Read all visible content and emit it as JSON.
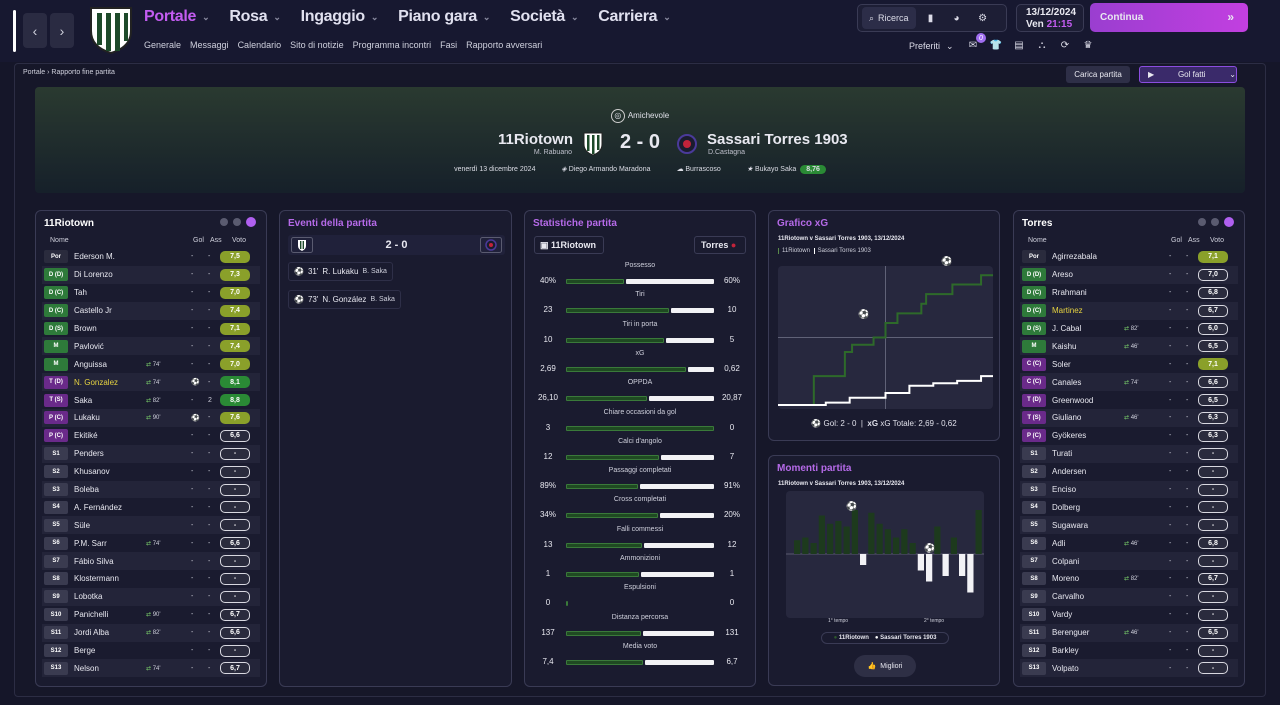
{
  "nav": {
    "main": [
      {
        "label": "Portale",
        "active": true
      },
      {
        "label": "Rosa"
      },
      {
        "label": "Ingaggio"
      },
      {
        "label": "Piano gara"
      },
      {
        "label": "Società"
      },
      {
        "label": "Carriera"
      }
    ],
    "sub": [
      "Generale",
      "Messaggi",
      "Calendario",
      "Sito di notizie",
      "Programma incontri",
      "Fasi",
      "Rapporto avversari"
    ],
    "search": "Ricerca",
    "date": "13/12/2024",
    "day": "Ven",
    "time": "21:15",
    "continue": "Continua",
    "favorites": "Preferiti",
    "badge": "0"
  },
  "breadcrumb": {
    "root": "Portale",
    "current": "Rapporto fine partita"
  },
  "actions": {
    "load": "Carica partita",
    "goals": "Gol fatti"
  },
  "match": {
    "competition": "Amichevole",
    "home": "11Riotown",
    "home_coach": "M. Rabuano",
    "away": "Sassari Torres 1903",
    "away_coach": "D.Castagna",
    "score": "2 - 0",
    "date": "venerdì 13 dicembre 2024",
    "stadium": "Diego Armando Maradona",
    "weather": "Burrascoso",
    "mvp": "Bukayo Saka",
    "mvp_rating": "8,76"
  },
  "home_lineup": {
    "title": "11Riotown",
    "headers": {
      "name": "Nome",
      "gol": "Gol",
      "ass": "Ass",
      "vote": "Voto"
    },
    "players": [
      {
        "pos": "Por",
        "pcolor": "#2a2b3d",
        "name": "Ederson M.",
        "sub": "",
        "gol": "-",
        "ass": "-",
        "vote": "7,5",
        "vcolor": "#8aa02a"
      },
      {
        "pos": "D (D)",
        "pcolor": "#2e7a3a",
        "name": "Di Lorenzo",
        "sub": "",
        "gol": "-",
        "ass": "-",
        "vote": "7,3",
        "vcolor": "#8aa02a"
      },
      {
        "pos": "D (C)",
        "pcolor": "#2e7a3a",
        "name": "Tah",
        "sub": "",
        "gol": "-",
        "ass": "-",
        "vote": "7,0",
        "vcolor": "#8aa02a"
      },
      {
        "pos": "D (C)",
        "pcolor": "#2e7a3a",
        "name": "Castello Jr",
        "sub": "",
        "gol": "-",
        "ass": "-",
        "vote": "7,4",
        "vcolor": "#8aa02a"
      },
      {
        "pos": "D (S)",
        "pcolor": "#2e7a3a",
        "name": "Brown",
        "sub": "",
        "gol": "-",
        "ass": "-",
        "vote": "7,1",
        "vcolor": "#8aa02a"
      },
      {
        "pos": "M",
        "pcolor": "#2e7a3a",
        "name": "Pavlović",
        "sub": "",
        "gol": "-",
        "ass": "-",
        "vote": "7,4",
        "vcolor": "#8aa02a"
      },
      {
        "pos": "M",
        "pcolor": "#2e7a3a",
        "name": "Anguissa",
        "sub": "74'",
        "gol": "-",
        "ass": "-",
        "vote": "7,0",
        "vcolor": "#8aa02a"
      },
      {
        "pos": "T (D)",
        "pcolor": "#6a2a8a",
        "name": "N. Gonzalez",
        "sub": "74'",
        "gol": "⚽",
        "ass": "-",
        "vote": "8,1",
        "vcolor": "#2a8a35",
        "hl": true
      },
      {
        "pos": "T (S)",
        "pcolor": "#6a2a8a",
        "name": "Saka",
        "sub": "82'",
        "gol": "-",
        "ass": "2",
        "vote": "8,8",
        "vcolor": "#2a8a35"
      },
      {
        "pos": "P (C)",
        "pcolor": "#6a2a8a",
        "name": "Lukaku",
        "sub": "90'",
        "gol": "⚽",
        "ass": "-",
        "vote": "7,6",
        "vcolor": "#8aa02a"
      },
      {
        "pos": "P (C)",
        "pcolor": "#6a2a8a",
        "name": "Ekitiké",
        "sub": "",
        "gol": "-",
        "ass": "-",
        "vote": "6,6",
        "vcolor": "#2a2b3d"
      },
      {
        "pos": "S1",
        "pcolor": "#3a3b50",
        "name": "Penders",
        "sub": "",
        "gol": "-",
        "ass": "-",
        "vote": "-",
        "vcolor": "#2a2b3d"
      },
      {
        "pos": "S2",
        "pcolor": "#3a3b50",
        "name": "Khusanov",
        "sub": "",
        "gol": "-",
        "ass": "-",
        "vote": "-",
        "vcolor": "#2a2b3d"
      },
      {
        "pos": "S3",
        "pcolor": "#3a3b50",
        "name": "Boleba",
        "sub": "",
        "gol": "-",
        "ass": "-",
        "vote": "-",
        "vcolor": "#2a2b3d"
      },
      {
        "pos": "S4",
        "pcolor": "#3a3b50",
        "name": "A. Fernández",
        "sub": "",
        "gol": "-",
        "ass": "-",
        "vote": "-",
        "vcolor": "#2a2b3d"
      },
      {
        "pos": "S5",
        "pcolor": "#3a3b50",
        "name": "Süle",
        "sub": "",
        "gol": "-",
        "ass": "-",
        "vote": "-",
        "vcolor": "#2a2b3d"
      },
      {
        "pos": "S6",
        "pcolor": "#3a3b50",
        "name": "P.M. Sarr",
        "sub": "74'",
        "gol": "-",
        "ass": "-",
        "vote": "6,6",
        "vcolor": "#2a2b3d"
      },
      {
        "pos": "S7",
        "pcolor": "#3a3b50",
        "name": "Fábio Silva",
        "sub": "",
        "gol": "-",
        "ass": "-",
        "vote": "-",
        "vcolor": "#2a2b3d"
      },
      {
        "pos": "S8",
        "pcolor": "#3a3b50",
        "name": "Klostermann",
        "sub": "",
        "gol": "-",
        "ass": "-",
        "vote": "-",
        "vcolor": "#2a2b3d"
      },
      {
        "pos": "S9",
        "pcolor": "#3a3b50",
        "name": "Lobotka",
        "sub": "",
        "gol": "-",
        "ass": "-",
        "vote": "-",
        "vcolor": "#2a2b3d"
      },
      {
        "pos": "S10",
        "pcolor": "#3a3b50",
        "name": "Panichelli",
        "sub": "90'",
        "gol": "-",
        "ass": "-",
        "vote": "6,7",
        "vcolor": "#2a2b3d"
      },
      {
        "pos": "S11",
        "pcolor": "#3a3b50",
        "name": "Jordi Alba",
        "sub": "82'",
        "gol": "-",
        "ass": "-",
        "vote": "6,6",
        "vcolor": "#2a2b3d"
      },
      {
        "pos": "S12",
        "pcolor": "#3a3b50",
        "name": "Berge",
        "sub": "",
        "gol": "-",
        "ass": "-",
        "vote": "-",
        "vcolor": "#2a2b3d"
      },
      {
        "pos": "S13",
        "pcolor": "#3a3b50",
        "name": "Nelson",
        "sub": "74'",
        "gol": "-",
        "ass": "-",
        "vote": "6,7",
        "vcolor": "#2a2b3d"
      }
    ]
  },
  "away_lineup": {
    "title": "Torres",
    "headers": {
      "name": "Nome",
      "gol": "Gol",
      "ass": "Ass",
      "vote": "Voto"
    },
    "players": [
      {
        "pos": "Por",
        "pcolor": "#2a2b3d",
        "name": "Agirrezabala",
        "sub": "",
        "gol": "-",
        "ass": "-",
        "vote": "7,1",
        "vcolor": "#8aa02a"
      },
      {
        "pos": "D (D)",
        "pcolor": "#2e7a3a",
        "name": "Areso",
        "sub": "",
        "gol": "-",
        "ass": "-",
        "vote": "7,0",
        "vcolor": "#2a2b3d"
      },
      {
        "pos": "D (C)",
        "pcolor": "#2e7a3a",
        "name": "Rrahmani",
        "sub": "",
        "gol": "-",
        "ass": "-",
        "vote": "6,8",
        "vcolor": "#2a2b3d"
      },
      {
        "pos": "D (C)",
        "pcolor": "#2e7a3a",
        "name": "Martinez",
        "sub": "",
        "gol": "-",
        "ass": "-",
        "vote": "6,7",
        "vcolor": "#2a2b3d",
        "hl": true
      },
      {
        "pos": "D (S)",
        "pcolor": "#2e7a3a",
        "name": "J. Cabal",
        "sub": "82'",
        "gol": "-",
        "ass": "-",
        "vote": "6,0",
        "vcolor": "#2a2b3d"
      },
      {
        "pos": "M",
        "pcolor": "#2e7a3a",
        "name": "Kaishu",
        "sub": "46'",
        "gol": "-",
        "ass": "-",
        "vote": "6,5",
        "vcolor": "#2a2b3d"
      },
      {
        "pos": "C (C)",
        "pcolor": "#6a2a8a",
        "name": "Soler",
        "sub": "",
        "gol": "-",
        "ass": "-",
        "vote": "7,1",
        "vcolor": "#8aa02a"
      },
      {
        "pos": "C (C)",
        "pcolor": "#6a2a8a",
        "name": "Canales",
        "sub": "74'",
        "gol": "-",
        "ass": "-",
        "vote": "6,6",
        "vcolor": "#2a2b3d"
      },
      {
        "pos": "T (D)",
        "pcolor": "#6a2a8a",
        "name": "Greenwood",
        "sub": "",
        "gol": "-",
        "ass": "-",
        "vote": "6,5",
        "vcolor": "#2a2b3d"
      },
      {
        "pos": "T (S)",
        "pcolor": "#6a2a8a",
        "name": "Giuliano",
        "sub": "46'",
        "gol": "-",
        "ass": "-",
        "vote": "6,3",
        "vcolor": "#2a2b3d"
      },
      {
        "pos": "P (C)",
        "pcolor": "#6a2a8a",
        "name": "Gyökeres",
        "sub": "",
        "gol": "-",
        "ass": "-",
        "vote": "6,3",
        "vcolor": "#2a2b3d"
      },
      {
        "pos": "S1",
        "pcolor": "#3a3b50",
        "name": "Turati",
        "sub": "",
        "gol": "-",
        "ass": "-",
        "vote": "-",
        "vcolor": "#2a2b3d"
      },
      {
        "pos": "S2",
        "pcolor": "#3a3b50",
        "name": "Andersen",
        "sub": "",
        "gol": "-",
        "ass": "-",
        "vote": "-",
        "vcolor": "#2a2b3d"
      },
      {
        "pos": "S3",
        "pcolor": "#3a3b50",
        "name": "Enciso",
        "sub": "",
        "gol": "-",
        "ass": "-",
        "vote": "-",
        "vcolor": "#2a2b3d"
      },
      {
        "pos": "S4",
        "pcolor": "#3a3b50",
        "name": "Dolberg",
        "sub": "",
        "gol": "-",
        "ass": "-",
        "vote": "-",
        "vcolor": "#2a2b3d"
      },
      {
        "pos": "S5",
        "pcolor": "#3a3b50",
        "name": "Sugawara",
        "sub": "",
        "gol": "-",
        "ass": "-",
        "vote": "-",
        "vcolor": "#2a2b3d"
      },
      {
        "pos": "S6",
        "pcolor": "#3a3b50",
        "name": "Adli",
        "sub": "46'",
        "gol": "-",
        "ass": "-",
        "vote": "6,8",
        "vcolor": "#2a2b3d"
      },
      {
        "pos": "S7",
        "pcolor": "#3a3b50",
        "name": "Colpani",
        "sub": "",
        "gol": "-",
        "ass": "-",
        "vote": "-",
        "vcolor": "#2a2b3d"
      },
      {
        "pos": "S8",
        "pcolor": "#3a3b50",
        "name": "Moreno",
        "sub": "82'",
        "gol": "-",
        "ass": "-",
        "vote": "6,7",
        "vcolor": "#2a2b3d"
      },
      {
        "pos": "S9",
        "pcolor": "#3a3b50",
        "name": "Carvalho",
        "sub": "",
        "gol": "-",
        "ass": "-",
        "vote": "-",
        "vcolor": "#2a2b3d"
      },
      {
        "pos": "S10",
        "pcolor": "#3a3b50",
        "name": "Vardy",
        "sub": "",
        "gol": "-",
        "ass": "-",
        "vote": "-",
        "vcolor": "#2a2b3d"
      },
      {
        "pos": "S11",
        "pcolor": "#3a3b50",
        "name": "Berenguer",
        "sub": "46'",
        "gol": "-",
        "ass": "-",
        "vote": "6,5",
        "vcolor": "#2a2b3d"
      },
      {
        "pos": "S12",
        "pcolor": "#3a3b50",
        "name": "Barkley",
        "sub": "",
        "gol": "-",
        "ass": "-",
        "vote": "-",
        "vcolor": "#2a2b3d"
      },
      {
        "pos": "S13",
        "pcolor": "#3a3b50",
        "name": "Volpato",
        "sub": "",
        "gol": "-",
        "ass": "-",
        "vote": "-",
        "vcolor": "#2a2b3d"
      }
    ]
  },
  "events": {
    "title": "Eventi della partita",
    "score": "2 - 0",
    "items": [
      {
        "min": "31'",
        "scorer": "R. Lukaku",
        "assist": "B. Saka"
      },
      {
        "min": "73'",
        "scorer": "N. González",
        "assist": "B. Saka"
      }
    ]
  },
  "stats": {
    "title": "Statistiche partita",
    "home": "11Riotown",
    "away": "Torres",
    "rows": [
      {
        "label": "Possesso",
        "h": "40%",
        "a": "60%",
        "hv": 40,
        "av": 60
      },
      {
        "label": "Tiri",
        "h": "23",
        "a": "10",
        "hv": 23,
        "av": 10
      },
      {
        "label": "Tiri in porta",
        "h": "10",
        "a": "5",
        "hv": 10,
        "av": 5
      },
      {
        "label": "xG",
        "h": "2,69",
        "a": "0,62",
        "hv": 2.69,
        "av": 0.62
      },
      {
        "label": "OPPDA",
        "h": "26,10",
        "a": "20,87",
        "hv": 26.1,
        "av": 20.87
      },
      {
        "label": "Chiare occasioni da gol",
        "h": "3",
        "a": "0",
        "hv": 3,
        "av": 0
      },
      {
        "label": "Calci d'angolo",
        "h": "12",
        "a": "7",
        "hv": 12,
        "av": 7
      },
      {
        "label": "Passaggi completati",
        "h": "89%",
        "a": "91%",
        "hv": 89,
        "av": 91
      },
      {
        "label": "Cross completati",
        "h": "34%",
        "a": "20%",
        "hv": 34,
        "av": 20
      },
      {
        "label": "Falli commessi",
        "h": "13",
        "a": "12",
        "hv": 13,
        "av": 12
      },
      {
        "label": "Ammonizioni",
        "h": "1",
        "a": "1",
        "hv": 1,
        "av": 1
      },
      {
        "label": "Espulsioni",
        "h": "0",
        "a": "0",
        "hv": 0,
        "av": 0
      },
      {
        "label": "Distanza percorsa",
        "h": "137",
        "a": "131",
        "hv": 137,
        "av": 131
      },
      {
        "label": "Media voto",
        "h": "7,4",
        "a": "6,7",
        "hv": 7.4,
        "av": 6.7
      }
    ]
  },
  "xg": {
    "title": "Grafico xG",
    "subtitle": "11Riotown v Sassari Torres 1903, 13/12/2024",
    "legend_home": "11Riotown",
    "legend_away": "Sassari Torres 1903",
    "goals_label": "Gol: 2 - 0",
    "xg_label": "xG Totale: 2,69 - 0,62"
  },
  "moments": {
    "title": "Momenti partita",
    "subtitle": "11Riotown v Sassari Torres 1903, 13/12/2024",
    "first_half": "1° tempo",
    "second_half": "2° tempo",
    "legend_home": "11Riotown",
    "legend_away": "Sassari Torres 1903",
    "best": "Migliori"
  },
  "chart_data": [
    {
      "type": "line",
      "title": "Grafico xG",
      "series": [
        {
          "name": "11Riotown",
          "x": [
            0,
            15,
            28,
            31,
            40,
            45,
            50,
            60,
            62,
            73,
            85,
            90
          ],
          "y": [
            0,
            0.6,
            1.1,
            1.25,
            1.4,
            1.7,
            1.9,
            2.1,
            2.3,
            2.5,
            2.69,
            2.69
          ]
        },
        {
          "name": "Sassari Torres 1903",
          "x": [
            0,
            20,
            30,
            45,
            55,
            65,
            75,
            85,
            90
          ],
          "y": [
            0,
            0.05,
            0.15,
            0.25,
            0.4,
            0.45,
            0.5,
            0.6,
            0.62
          ]
        }
      ],
      "goals": [
        {
          "minute": 31
        },
        {
          "minute": 73
        }
      ]
    },
    {
      "type": "bar",
      "title": "Momenti partita",
      "values": [
        0.25,
        0.3,
        0.2,
        0.7,
        0.55,
        0.6,
        0.5,
        0.8,
        -0.2,
        0.75,
        0.55,
        0.45,
        0.3,
        0.45,
        0.2,
        -0.3,
        -0.5,
        0.5,
        -0.4,
        0.3,
        -0.4,
        -0.7,
        0.8
      ]
    }
  ]
}
